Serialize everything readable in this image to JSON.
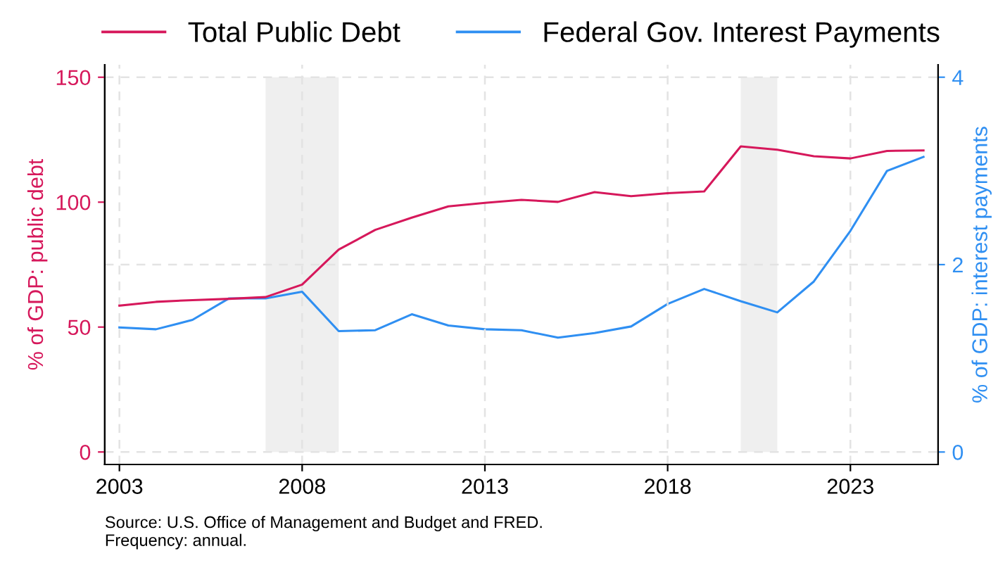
{
  "chart_data": {
    "type": "line",
    "x": [
      2003,
      2004,
      2005,
      2006,
      2007,
      2008,
      2009,
      2010,
      2011,
      2012,
      2013,
      2014,
      2015,
      2016,
      2017,
      2018,
      2019,
      2020,
      2021,
      2022,
      2023,
      2024,
      2025
    ],
    "series": [
      {
        "name": "Total Public Debt",
        "color": "#d6185b",
        "values": [
          58.6,
          60.1,
          60.8,
          61.3,
          62.0,
          67.0,
          81.0,
          88.9,
          93.8,
          98.3,
          99.7,
          100.9,
          100.1,
          104.0,
          102.4,
          103.6,
          104.3,
          122.3,
          121.0,
          118.4,
          117.5,
          120.5,
          120.7
        ]
      },
      {
        "name": "Federal Gov. Interest Payments",
        "color": "#2f8ff2",
        "axis": "y2",
        "values": [
          1.33,
          1.31,
          1.41,
          1.64,
          1.64,
          1.71,
          1.29,
          1.3,
          1.47,
          1.35,
          1.31,
          1.3,
          1.22,
          1.27,
          1.34,
          1.58,
          1.74,
          1.61,
          1.49,
          1.82,
          2.36,
          3.0,
          3.15
        ]
      }
    ],
    "ylabel": "% of GDP: public debt",
    "y2label": "% of GDP: interest payments",
    "xlim": [
      2002.6,
      2025.4
    ],
    "xticks": [
      2003,
      2008,
      2013,
      2018,
      2023
    ],
    "ylim": [
      -5,
      155
    ],
    "yticks": [
      0,
      50,
      100,
      150
    ],
    "y2lim": [
      -0.133,
      4.133
    ],
    "y2ticks": [
      0,
      2,
      4
    ],
    "bands": [
      {
        "axis": "x",
        "from": 2007,
        "to": 2009,
        "color": "#efefef"
      },
      {
        "axis": "x",
        "from": 2020,
        "to": 2021,
        "color": "#efefef"
      }
    ],
    "grid": true,
    "legend": "top",
    "marker": "none",
    "line_style": "solid",
    "annotations": [
      "Source: U.S. Office of Management and Budget and FRED.",
      "Frequency: annual."
    ]
  }
}
